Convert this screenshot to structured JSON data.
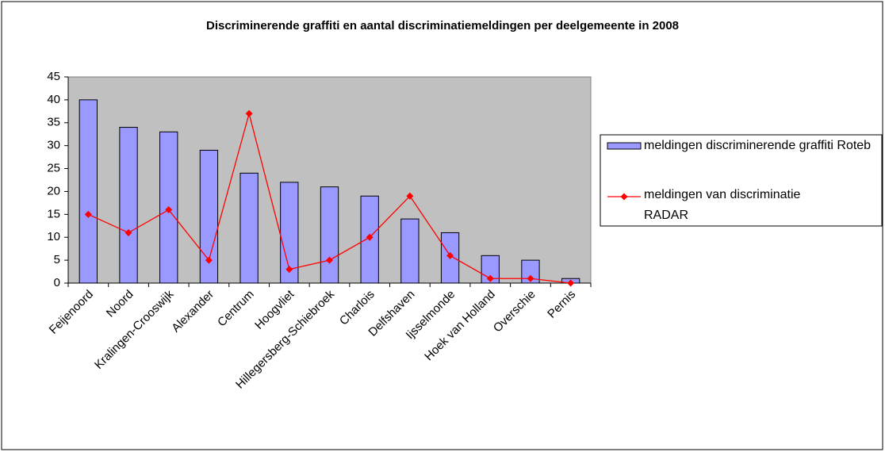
{
  "chart_data": {
    "type": "bar",
    "title": "Discriminerende graffiti en aantal discriminatiemeldingen per deelgemeente in 2008",
    "categories": [
      "Feijenoord",
      "Noord",
      "Kralingen-Crooswijk",
      "Alexander",
      "Centrum",
      "Hoogvliet",
      "Hillegersberg-Schiebroek",
      "Charlois",
      "Delfshaven",
      "Ijsselmonde",
      "Hoek van Holland",
      "Overschie",
      "Pernis"
    ],
    "series": [
      {
        "name": "meldingen discriminerende graffiti Roteb",
        "type": "bar",
        "color": "#9999ff",
        "values": [
          40,
          34,
          33,
          29,
          24,
          22,
          21,
          19,
          14,
          11,
          6,
          5,
          1
        ]
      },
      {
        "name": "meldingen van discriminatie RADAR",
        "type": "line",
        "color": "#ff0000",
        "values": [
          15,
          11,
          16,
          5,
          37,
          3,
          5,
          10,
          19,
          6,
          1,
          1,
          0
        ]
      }
    ],
    "ylim": [
      0,
      45
    ],
    "yticks": [
      0,
      5,
      10,
      15,
      20,
      25,
      30,
      35,
      40,
      45
    ],
    "grid": false,
    "legend": "right",
    "plot_background": "#c0c0c0"
  }
}
